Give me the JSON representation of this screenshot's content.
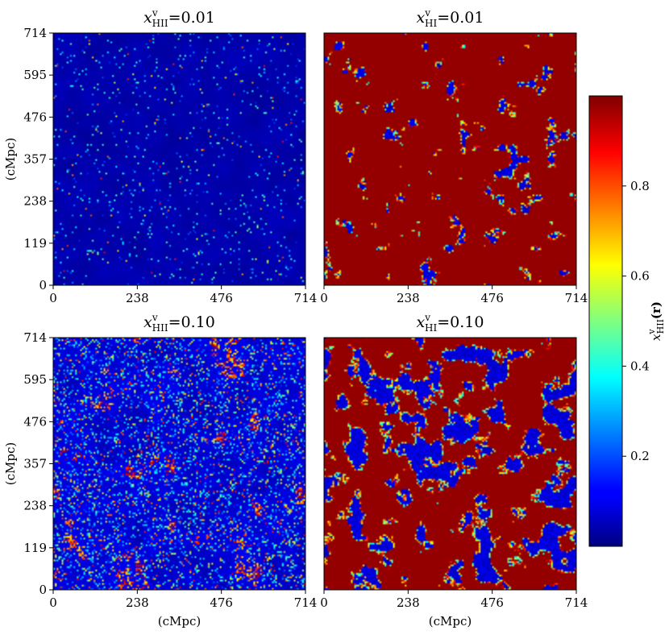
{
  "chart_data": [
    {
      "type": "heatmap",
      "panel": "top-left",
      "title": {
        "base": "x",
        "sup": "v",
        "sub": "HII",
        "value": "=0.01"
      },
      "field": "ionized fraction",
      "global_fraction": 0.01,
      "xlabel": "",
      "ylabel": "(cMpc)",
      "xticks": [
        0,
        238,
        476,
        714
      ],
      "yticks": [
        0,
        119,
        238,
        357,
        476,
        595,
        714
      ],
      "xlim": [
        0,
        714
      ],
      "ylim": [
        0,
        714
      ]
    },
    {
      "type": "heatmap",
      "panel": "top-right",
      "title": {
        "base": "x",
        "sup": "v",
        "sub": "HI",
        "value": "=0.01"
      },
      "field": "ionized fraction",
      "global_fraction": 0.01,
      "xlabel": "",
      "ylabel": "",
      "xticks": [
        0,
        238,
        476,
        714
      ],
      "yticks": [],
      "xlim": [
        0,
        714
      ],
      "ylim": [
        0,
        714
      ]
    },
    {
      "type": "heatmap",
      "panel": "bottom-left",
      "title": {
        "base": "x",
        "sup": "v",
        "sub": "HII",
        "value": "=0.10"
      },
      "field": "ionized fraction",
      "global_fraction": 0.1,
      "xlabel": "(cMpc)",
      "ylabel": "(cMpc)",
      "xticks": [
        0,
        238,
        476,
        714
      ],
      "yticks": [
        0,
        119,
        238,
        357,
        476,
        595,
        714
      ],
      "xlim": [
        0,
        714
      ],
      "ylim": [
        0,
        714
      ]
    },
    {
      "type": "heatmap",
      "panel": "bottom-right",
      "title": {
        "base": "x",
        "sup": "v",
        "sub": "HI",
        "value": "=0.10"
      },
      "field": "ionized fraction",
      "global_fraction": 0.1,
      "xlabel": "(cMpc)",
      "ylabel": "",
      "xticks": [
        0,
        238,
        476,
        714
      ],
      "yticks": [],
      "xlim": [
        0,
        714
      ],
      "ylim": [
        0,
        714
      ]
    }
  ],
  "colorbar": {
    "label": {
      "base": "x",
      "sup": "v",
      "sub": "HII",
      "arg": "(r)"
    },
    "range": [
      0,
      1
    ],
    "ticks": [
      0.2,
      0.4,
      0.6,
      0.8
    ],
    "tick_labels": [
      "0.2",
      "0.4",
      "0.6",
      "0.8"
    ],
    "colormap": "jet"
  },
  "colors": {
    "jet_dark_blue": "#00007f",
    "jet_blue": "#0000ff",
    "jet_cyan": "#00ffff",
    "jet_yellow": "#ffff00",
    "jet_red": "#ff0000",
    "jet_dark_red": "#7f0000"
  }
}
